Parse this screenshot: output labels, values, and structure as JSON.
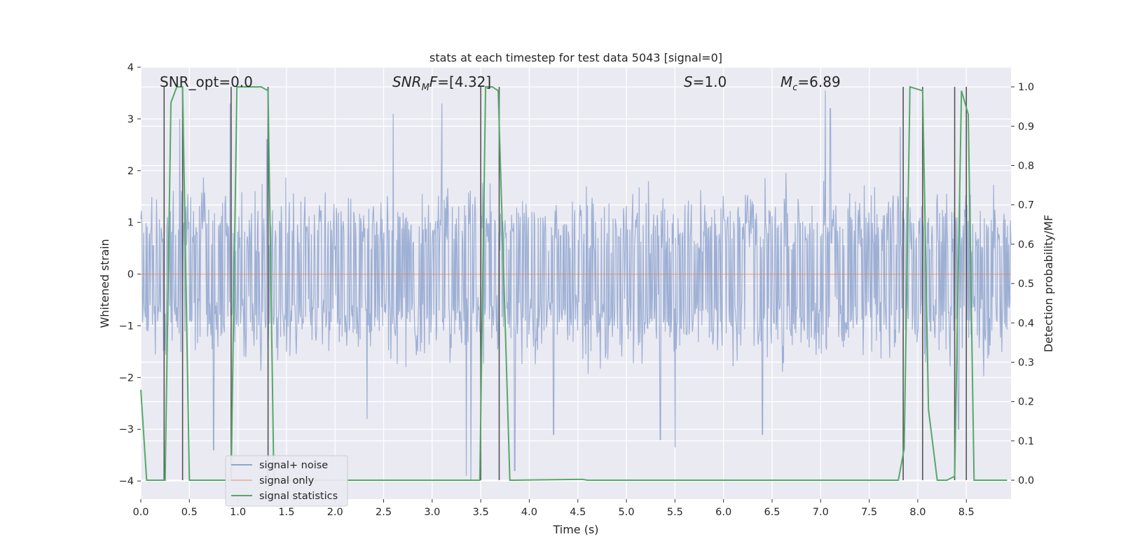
{
  "chart_data": {
    "type": "line",
    "title": "stats at each timestep for test data 5043 [signal=0]",
    "xlabel": "Time (s)",
    "ylabel": "Whitened strain",
    "y2label": "Detection probability/MF",
    "xlim": [
      0.0,
      8.96
    ],
    "ylim": [
      -4.35,
      4.0
    ],
    "y2lim": [
      -0.048,
      1.05
    ],
    "x_ticks": [
      "0.0",
      "0.5",
      "1.0",
      "1.5",
      "2.0",
      "2.5",
      "3.0",
      "3.5",
      "4.0",
      "4.5",
      "5.0",
      "5.5",
      "6.0",
      "6.5",
      "7.0",
      "7.5",
      "8.0",
      "8.5"
    ],
    "y_ticks": [
      "4",
      "3",
      "2",
      "1",
      "0",
      "−1",
      "−2",
      "−3",
      "−4"
    ],
    "y2_ticks": [
      "1.0",
      "0.9",
      "0.8",
      "0.7",
      "0.6",
      "0.5",
      "0.4",
      "0.3",
      "0.2",
      "0.1",
      "0.0"
    ],
    "annotations": [
      {
        "prefix": "SNR_opt=0.0",
        "italic": "",
        "sub": "",
        "suffix": ""
      },
      {
        "prefix": "",
        "italic": "SNR",
        "sub": "M",
        "italic2": "F",
        "suffix": "=[4.32]"
      },
      {
        "prefix": "",
        "italic": "S",
        "sub": "",
        "suffix": "=1.0"
      },
      {
        "prefix": "",
        "italic": "M",
        "sub": "c",
        "suffix": "=6.89"
      }
    ],
    "grid": true,
    "legend_position": "lower left",
    "colors": {
      "noise": "#8fa5cf",
      "signal": "#dd8452",
      "stats": "#55a868",
      "vlines": "#555555",
      "axes_bg": "#eaeaf2",
      "grid": "#ffffff"
    },
    "series": [
      {
        "name": "signal+ noise",
        "kind": "noise",
        "x_range": [
          0.0,
          8.96
        ],
        "typical_abs": [
          1.1,
          2.0
        ],
        "peaks": [
          [
            0.4,
            3.0
          ],
          [
            0.92,
            3.3
          ],
          [
            1.3,
            2.6
          ],
          [
            2.6,
            3.1
          ],
          [
            3.1,
            3.3
          ],
          [
            3.35,
            -3.9
          ],
          [
            3.4,
            -4.0
          ],
          [
            3.85,
            -3.8
          ],
          [
            5.35,
            -3.2
          ],
          [
            5.5,
            -3.35
          ],
          [
            7.05,
            3.55
          ],
          [
            7.1,
            3.2
          ],
          [
            7.82,
            2.85
          ],
          [
            0.75,
            -3.4
          ],
          [
            2.33,
            -2.8
          ],
          [
            4.25,
            -3.1
          ],
          [
            6.4,
            -3.1
          ],
          [
            8.42,
            -3.0
          ]
        ]
      },
      {
        "name": "signal only",
        "kind": "flat",
        "x": [
          0.0,
          8.96
        ],
        "y": [
          0.0,
          0.0
        ]
      },
      {
        "name": "signal statistics",
        "kind": "line",
        "axis": "right",
        "x": [
          0.0,
          0.06,
          0.25,
          0.31,
          0.37,
          0.43,
          0.5,
          0.56,
          0.93,
          0.99,
          1.05,
          1.24,
          1.31,
          1.37,
          1.43,
          3.43,
          3.49,
          3.55,
          3.62,
          3.68,
          3.8,
          3.86,
          4.5,
          4.55,
          4.6,
          7.8,
          7.86,
          7.92,
          8.05,
          8.11,
          8.2,
          8.3,
          8.38,
          8.45,
          8.52,
          8.58,
          8.92
        ],
        "y": [
          0.23,
          0.0,
          0.0,
          0.96,
          1.0,
          1.0,
          0.0,
          0.0,
          0.0,
          1.0,
          1.0,
          1.0,
          0.99,
          0.0,
          0.0,
          0.0,
          0.0,
          1.0,
          1.0,
          0.99,
          0.0,
          0.0,
          0.002,
          0.002,
          0.0,
          0.0,
          0.08,
          1.0,
          0.99,
          0.18,
          0.0,
          0.0,
          0.01,
          0.99,
          0.93,
          0.0,
          0.0
        ]
      }
    ],
    "vlines_x": [
      0.24,
      0.43,
      0.93,
      1.31,
      3.5,
      3.69,
      7.85,
      8.05,
      8.38,
      8.5
    ]
  },
  "legend": {
    "noise_label": "signal+ noise",
    "signal_label": "signal only",
    "stats_label": "signal statistics"
  }
}
